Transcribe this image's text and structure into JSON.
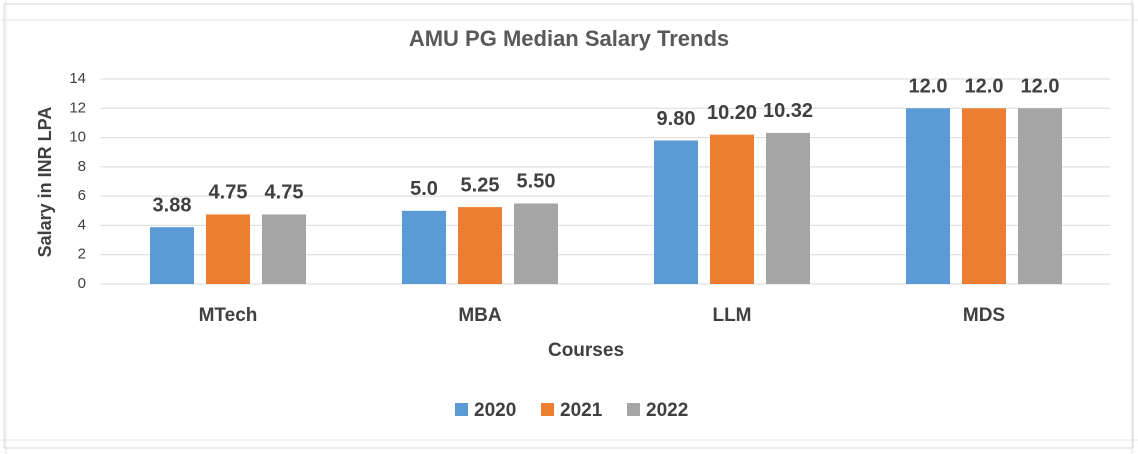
{
  "chart_data": {
    "type": "bar",
    "title": "AMU PG Median Salary Trends",
    "x_label": "Courses",
    "y_label": "Salary in INR LPA",
    "categories": [
      "MTech",
      "MBA",
      "LLM",
      "MDS"
    ],
    "series": [
      {
        "name": "2020",
        "color": "#5b9bd5",
        "values": [
          3.88,
          5.0,
          9.8,
          12.0
        ],
        "value_labels": [
          "3.88",
          "5.0",
          "9.80",
          "12.0"
        ]
      },
      {
        "name": "2021",
        "color": "#ed7d31",
        "values": [
          4.75,
          5.25,
          10.2,
          12.0
        ],
        "value_labels": [
          "4.75",
          "5.25",
          "10.20",
          "12.0"
        ]
      },
      {
        "name": "2022",
        "color": "#a5a5a5",
        "values": [
          4.75,
          5.5,
          10.32,
          12.0
        ],
        "value_labels": [
          "4.75",
          "5.50",
          "10.32",
          "12.0"
        ]
      }
    ],
    "ylim": [
      0,
      14
    ],
    "yticks": [
      0,
      2,
      4,
      6,
      8,
      10,
      12,
      14
    ],
    "grid": true,
    "legend": "bottom"
  }
}
